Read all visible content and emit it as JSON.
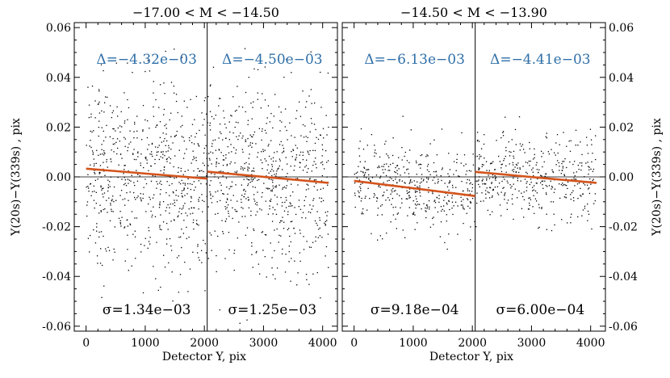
{
  "chart_data": {
    "type": "scatter",
    "ylabel": "Y(20s)−Y(339s) , pix",
    "xlabel": "Detector Y, pix",
    "ylim": [
      -0.062,
      0.062
    ],
    "xlim": [
      -200,
      4250
    ],
    "x_ticks": [
      "0",
      "1000",
      "2000",
      "3000",
      "4000"
    ],
    "y_ticks": [
      "0.06",
      "0.04",
      "0.02",
      "0.00",
      "-0.02",
      "-0.04",
      "-0.06"
    ],
    "colors": {
      "fit": "#d4541c",
      "delta": "#2f6fa8",
      "points": "#000000"
    },
    "panels": [
      {
        "title": "−17.00 < M < −14.50",
        "divider_x": 2048,
        "halves": [
          {
            "delta": "Δ=−4.32e−03",
            "sigma": "σ=1.34e−03",
            "fit": {
              "x": [
                0,
                2048
              ],
              "y": [
                0.0033,
                -0.0007
              ]
            },
            "n_points": 650,
            "spread": 0.0185
          },
          {
            "delta": "Δ=−4.50e−03",
            "sigma": "σ=1.25e−03",
            "fit": {
              "x": [
                2048,
                4100
              ],
              "y": [
                0.0021,
                -0.0024
              ]
            },
            "n_points": 650,
            "spread": 0.0185
          }
        ]
      },
      {
        "title": "−14.50 < M < −13.90",
        "divider_x": 2048,
        "halves": [
          {
            "delta": "Δ=−6.13e−03",
            "sigma": "σ=9.18e−04",
            "fit": {
              "x": [
                0,
                2048
              ],
              "y": [
                -0.0016,
                -0.0077
              ]
            },
            "n_points": 420,
            "spread": 0.0085
          },
          {
            "delta": "Δ=−4.41e−03",
            "sigma": "σ=6.00e−04",
            "fit": {
              "x": [
                2048,
                4100
              ],
              "y": [
                0.002,
                -0.0024
              ]
            },
            "n_points": 420,
            "spread": 0.0085
          }
        ]
      }
    ]
  }
}
